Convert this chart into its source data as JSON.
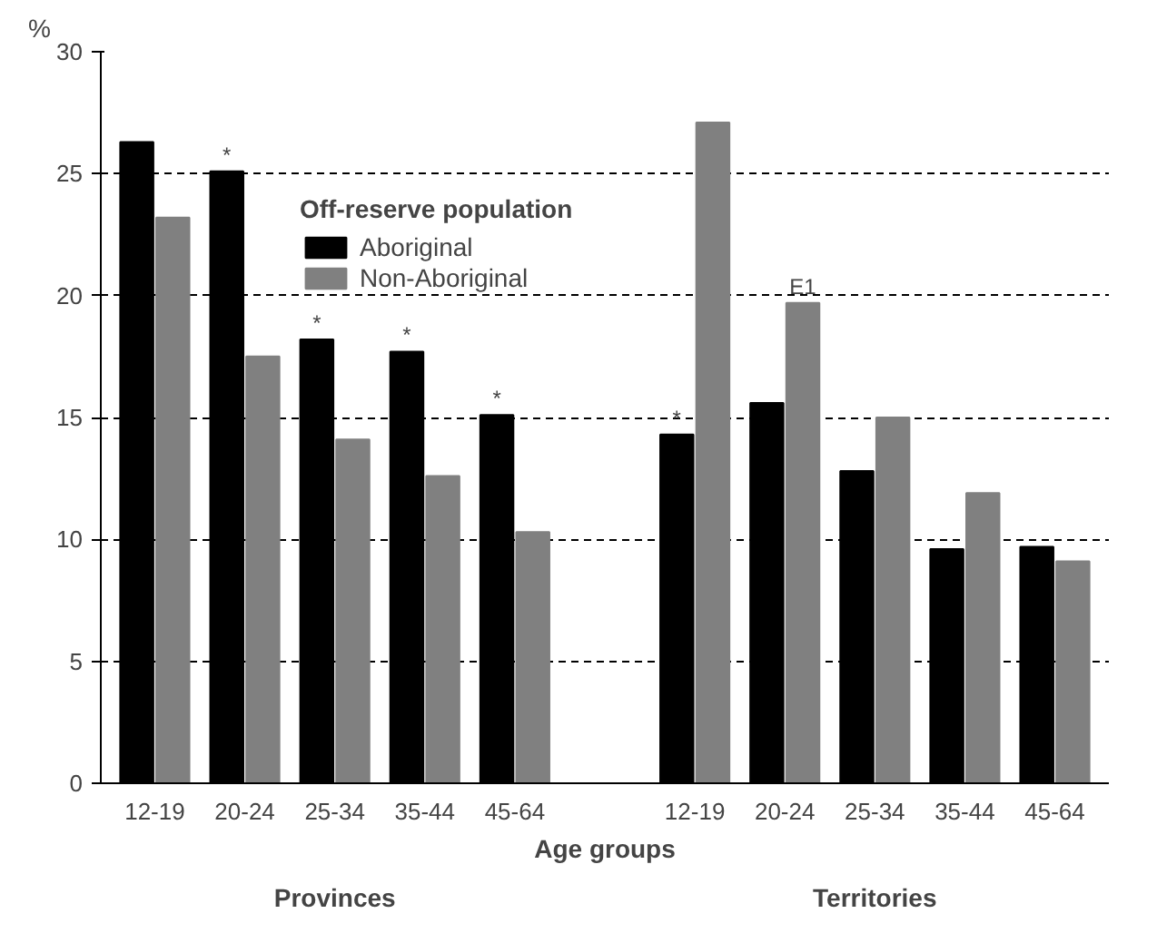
{
  "chart_data": {
    "type": "bar",
    "ylabel": "%",
    "xlabel": "Age groups",
    "legend_title": "Off-reserve population",
    "categories": [
      "12-19",
      "20-24",
      "25-34",
      "35-44",
      "45-64",
      null,
      "12-19",
      "20-24",
      "25-34",
      "35-44",
      "45-64"
    ],
    "series": [
      {
        "name": "Aboriginal",
        "color": "#000000",
        "values": [
          26.3,
          25.1,
          18.2,
          17.7,
          15.1,
          null,
          14.3,
          15.6,
          12.8,
          9.6,
          9.7
        ],
        "value_labels": [
          null,
          "*",
          "*",
          "*",
          "*",
          null,
          "*",
          null,
          null,
          null,
          null
        ]
      },
      {
        "name": "Non-Aboriginal",
        "color": "#808080",
        "values": [
          23.2,
          17.5,
          14.1,
          12.6,
          10.3,
          null,
          27.1,
          19.7,
          15.0,
          11.9,
          9.1
        ],
        "value_labels": [
          null,
          null,
          null,
          null,
          null,
          null,
          null,
          "E1",
          null,
          null,
          null
        ]
      }
    ],
    "ylim": [
      0,
      30
    ],
    "yticks": [
      0,
      5,
      10,
      15,
      20,
      25,
      30
    ],
    "grid": "y",
    "legend": "top",
    "annotations": [
      "Provinces",
      "Territories"
    ]
  }
}
